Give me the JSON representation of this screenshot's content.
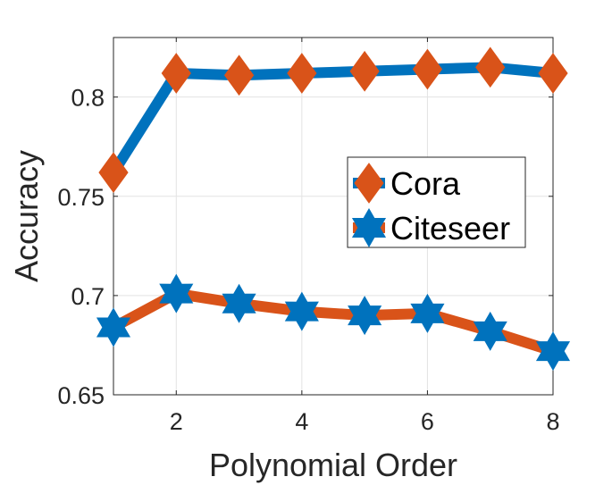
{
  "chart_data": {
    "type": "line",
    "xlabel": "Polynomial Order",
    "ylabel": "Accuracy",
    "xlim": [
      1,
      8
    ],
    "ylim": [
      0.65,
      0.83
    ],
    "xticks": [
      "2",
      "4",
      "6",
      "8"
    ],
    "yticks": [
      "0.65",
      "0.7",
      "0.75",
      "0.8"
    ],
    "grid": true,
    "legend_position": "center-right",
    "x": [
      1,
      2,
      3,
      4,
      5,
      6,
      7,
      8
    ],
    "series": [
      {
        "name": "Cora",
        "values": [
          0.762,
          0.812,
          0.811,
          0.812,
          0.813,
          0.814,
          0.815,
          0.812
        ],
        "line_color": "#0072BD",
        "marker": "diamond",
        "marker_color": "#D95319"
      },
      {
        "name": "Citeseer",
        "values": [
          0.684,
          0.701,
          0.696,
          0.692,
          0.69,
          0.691,
          0.682,
          0.672
        ],
        "line_color": "#D95319",
        "marker": "hexagram",
        "marker_color": "#0072BD"
      }
    ]
  }
}
